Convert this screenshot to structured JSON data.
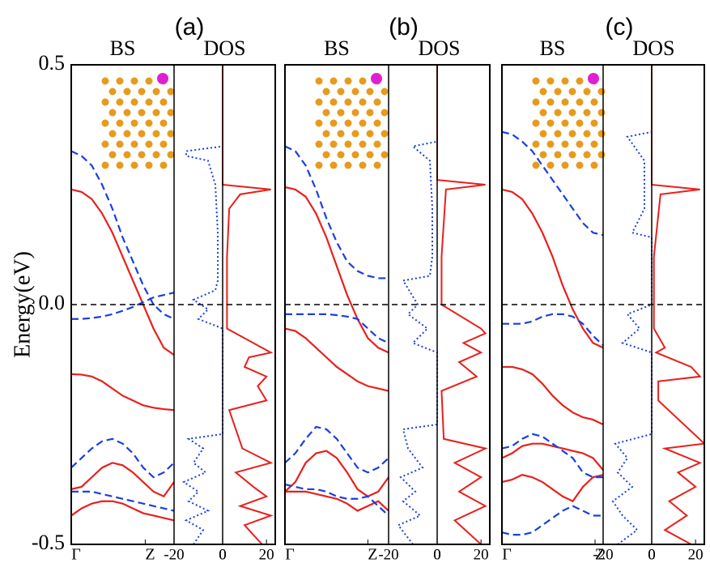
{
  "chart_data": [
    {
      "type": "band_dos",
      "title": "(a)",
      "bs_label": "BS",
      "dos_label": "DOS",
      "ylabel": "Energy(eV)",
      "ylim": [
        -0.5,
        0.5
      ],
      "yticks": [
        -0.5,
        {
          "value": 0,
          "label": "0.0"
        },
        0.5
      ],
      "fermi_line": true,
      "x": [
        0,
        0.1,
        0.2,
        0.3,
        0.4,
        0.5,
        0.6,
        0.7,
        0.8,
        0.9,
        1
      ],
      "xlim": [
        0,
        1
      ],
      "xticks": [
        {
          "value": 0,
          "label": "Γ"
        },
        {
          "value": 0.72,
          "label": "Z"
        }
      ],
      "series": [
        {
          "color": "#e8201c",
          "dash": false,
          "values": [
            0.24,
            0.235,
            0.22,
            0.19,
            0.15,
            0.1,
            0.05,
            0.0,
            -0.05,
            -0.09,
            -0.105
          ]
        },
        {
          "color": "#e8201c",
          "dash": false,
          "values": [
            -0.145,
            -0.146,
            -0.15,
            -0.16,
            -0.175,
            -0.19,
            -0.2,
            -0.21,
            -0.215,
            -0.218,
            -0.22
          ]
        },
        {
          "color": "#e8201c",
          "dash": false,
          "values": [
            -0.385,
            -0.38,
            -0.36,
            -0.34,
            -0.33,
            -0.335,
            -0.35,
            -0.37,
            -0.39,
            -0.4,
            -0.37
          ]
        },
        {
          "color": "#e8201c",
          "dash": false,
          "values": [
            -0.44,
            -0.425,
            -0.415,
            -0.41,
            -0.41,
            -0.415,
            -0.425,
            -0.435,
            -0.44,
            -0.445,
            -0.45
          ]
        },
        {
          "color": "#1a3fe0",
          "dash": true,
          "values": [
            0.32,
            0.31,
            0.29,
            0.25,
            0.2,
            0.14,
            0.09,
            0.04,
            0.0,
            -0.02,
            -0.03
          ]
        },
        {
          "color": "#1a3fe0",
          "dash": true,
          "values": [
            -0.03,
            -0.03,
            -0.028,
            -0.025,
            -0.02,
            -0.013,
            -0.005,
            0.005,
            0.015,
            0.02,
            0.025
          ]
        },
        {
          "color": "#1a3fe0",
          "dash": true,
          "values": [
            -0.34,
            -0.32,
            -0.3,
            -0.285,
            -0.28,
            -0.29,
            -0.31,
            -0.34,
            -0.36,
            -0.35,
            -0.33
          ]
        },
        {
          "color": "#1a3fe0",
          "dash": true,
          "values": [
            -0.39,
            -0.39,
            -0.39,
            -0.395,
            -0.4,
            -0.405,
            -0.41,
            -0.415,
            -0.42,
            -0.425,
            -0.43
          ]
        }
      ],
      "dos_down": {
        "color": "#1a3fe0",
        "xlim": [
          -20,
          0
        ],
        "xticks": [
          -20,
          0
        ],
        "energy": [
          -0.5,
          -0.47,
          -0.45,
          -0.43,
          -0.41,
          -0.39,
          -0.37,
          -0.35,
          -0.33,
          -0.3,
          -0.28,
          -0.27,
          -0.05,
          -0.03,
          -0.01,
          0.01,
          0.03,
          0.05,
          0.15,
          0.25,
          0.3,
          0.31,
          0.32,
          0.33,
          0.5
        ],
        "values": [
          -12,
          -8,
          -15,
          -6,
          -14,
          -10,
          -16,
          -7,
          -12,
          -8,
          -14,
          0,
          0,
          -10,
          -6,
          -12,
          -3,
          -2,
          -2,
          -3,
          -6,
          -15,
          -15,
          0,
          0
        ]
      },
      "dos_up": {
        "color": "#e8201c",
        "xlim": [
          0,
          24
        ],
        "xticks": [
          0,
          20
        ],
        "energy": [
          -0.5,
          -0.46,
          -0.44,
          -0.42,
          -0.4,
          -0.38,
          -0.35,
          -0.33,
          -0.3,
          -0.22,
          -0.2,
          -0.17,
          -0.15,
          -0.13,
          -0.11,
          -0.1,
          -0.05,
          0.1,
          0.2,
          0.23,
          0.24,
          0.25,
          0.5
        ],
        "values": [
          18,
          10,
          22,
          8,
          20,
          14,
          6,
          22,
          9,
          3,
          20,
          16,
          20,
          10,
          12,
          22,
          2,
          2,
          3,
          8,
          22,
          0,
          0
        ]
      }
    },
    {
      "type": "band_dos",
      "title": "(b)",
      "bs_label": "BS",
      "dos_label": "DOS",
      "ylim": [
        -0.5,
        0.5
      ],
      "fermi_line": true,
      "x": [
        0,
        0.1,
        0.2,
        0.3,
        0.4,
        0.5,
        0.6,
        0.7,
        0.8,
        0.9,
        1
      ],
      "xlim": [
        0,
        1
      ],
      "xticks": [
        {
          "value": 0,
          "label": "Γ"
        },
        {
          "value": 0.8,
          "label": "Z"
        }
      ],
      "series": [
        {
          "color": "#e8201c",
          "dash": false,
          "values": [
            0.245,
            0.24,
            0.225,
            0.19,
            0.14,
            0.08,
            0.02,
            -0.03,
            -0.07,
            -0.09,
            -0.1
          ]
        },
        {
          "color": "#e8201c",
          "dash": false,
          "values": [
            -0.05,
            -0.055,
            -0.07,
            -0.09,
            -0.11,
            -0.13,
            -0.145,
            -0.16,
            -0.17,
            -0.175,
            -0.18
          ]
        },
        {
          "color": "#e8201c",
          "dash": false,
          "values": [
            -0.39,
            -0.37,
            -0.33,
            -0.31,
            -0.305,
            -0.32,
            -0.35,
            -0.385,
            -0.4,
            -0.39,
            -0.36
          ]
        },
        {
          "color": "#e8201c",
          "dash": false,
          "values": [
            -0.39,
            -0.39,
            -0.39,
            -0.395,
            -0.4,
            -0.405,
            -0.415,
            -0.43,
            -0.42,
            -0.41,
            -0.43
          ]
        },
        {
          "color": "#1a3fe0",
          "dash": true,
          "values": [
            0.33,
            0.32,
            0.29,
            0.24,
            0.18,
            0.13,
            0.09,
            0.07,
            0.06,
            0.055,
            0.055
          ]
        },
        {
          "color": "#1a3fe0",
          "dash": true,
          "values": [
            -0.02,
            -0.02,
            -0.02,
            -0.02,
            -0.02,
            -0.022,
            -0.025,
            -0.03,
            -0.05,
            -0.07,
            -0.08
          ]
        },
        {
          "color": "#1a3fe0",
          "dash": true,
          "values": [
            -0.33,
            -0.31,
            -0.28,
            -0.255,
            -0.26,
            -0.28,
            -0.31,
            -0.34,
            -0.35,
            -0.34,
            -0.32
          ]
        },
        {
          "color": "#1a3fe0",
          "dash": true,
          "values": [
            -0.375,
            -0.38,
            -0.385,
            -0.385,
            -0.39,
            -0.4,
            -0.405,
            -0.405,
            -0.4,
            -0.42,
            -0.44
          ]
        }
      ],
      "dos_down": {
        "color": "#1a3fe0",
        "xlim": [
          -20,
          0
        ],
        "xticks": [
          -20,
          0
        ],
        "energy": [
          -0.5,
          -0.46,
          -0.44,
          -0.41,
          -0.39,
          -0.36,
          -0.34,
          -0.3,
          -0.26,
          -0.25,
          -0.1,
          -0.08,
          -0.05,
          -0.02,
          0.0,
          0.05,
          0.06,
          0.1,
          0.2,
          0.3,
          0.33,
          0.34,
          0.5
        ],
        "values": [
          -10,
          -16,
          -7,
          -14,
          -9,
          -15,
          -6,
          -12,
          -14,
          0,
          0,
          -10,
          -4,
          -12,
          -8,
          -14,
          -3,
          -2,
          -2,
          -3,
          -10,
          0,
          0
        ]
      },
      "dos_up": {
        "color": "#e8201c",
        "xlim": [
          0,
          24
        ],
        "xticks": [
          0,
          20
        ],
        "energy": [
          -0.5,
          -0.45,
          -0.42,
          -0.39,
          -0.36,
          -0.33,
          -0.3,
          -0.28,
          -0.18,
          -0.15,
          -0.12,
          -0.1,
          -0.08,
          -0.06,
          -0.05,
          0.0,
          0.1,
          0.24,
          0.25,
          0.26,
          0.5
        ],
        "values": [
          20,
          8,
          22,
          10,
          20,
          8,
          22,
          3,
          2,
          18,
          10,
          20,
          12,
          22,
          20,
          2,
          2,
          4,
          22,
          0,
          0
        ]
      }
    },
    {
      "type": "band_dos",
      "title": "(c)",
      "bs_label": "BS",
      "dos_label": "DOS",
      "ylim": [
        -0.5,
        0.5
      ],
      "fermi_line": true,
      "x": [
        0,
        0.1,
        0.2,
        0.3,
        0.4,
        0.5,
        0.6,
        0.7,
        0.8,
        0.9,
        1
      ],
      "xlim": [
        0,
        1
      ],
      "xticks": [
        {
          "value": 0,
          "label": "Γ"
        },
        {
          "value": 0.92,
          "label": "Z"
        }
      ],
      "series": [
        {
          "color": "#e8201c",
          "dash": false,
          "values": [
            0.24,
            0.235,
            0.22,
            0.19,
            0.15,
            0.1,
            0.04,
            -0.01,
            -0.05,
            -0.08,
            -0.09
          ]
        },
        {
          "color": "#e8201c",
          "dash": false,
          "values": [
            -0.13,
            -0.13,
            -0.135,
            -0.145,
            -0.165,
            -0.19,
            -0.21,
            -0.225,
            -0.235,
            -0.24,
            -0.25
          ]
        },
        {
          "color": "#e8201c",
          "dash": false,
          "values": [
            -0.32,
            -0.31,
            -0.295,
            -0.29,
            -0.29,
            -0.295,
            -0.3,
            -0.305,
            -0.31,
            -0.32,
            -0.345
          ]
        },
        {
          "color": "#e8201c",
          "dash": false,
          "values": [
            -0.37,
            -0.365,
            -0.355,
            -0.36,
            -0.37,
            -0.385,
            -0.4,
            -0.41,
            -0.38,
            -0.36,
            -0.355
          ]
        },
        {
          "color": "#1a3fe0",
          "dash": true,
          "values": [
            0.36,
            0.355,
            0.34,
            0.32,
            0.29,
            0.26,
            0.23,
            0.2,
            0.17,
            0.15,
            0.145
          ]
        },
        {
          "color": "#1a3fe0",
          "dash": true,
          "values": [
            -0.04,
            -0.04,
            -0.04,
            -0.035,
            -0.025,
            -0.02,
            -0.02,
            -0.025,
            -0.04,
            -0.065,
            -0.085
          ]
        },
        {
          "color": "#1a3fe0",
          "dash": true,
          "values": [
            -0.3,
            -0.295,
            -0.28,
            -0.27,
            -0.275,
            -0.29,
            -0.305,
            -0.32,
            -0.35,
            -0.36,
            -0.36
          ]
        },
        {
          "color": "#1a3fe0",
          "dash": true,
          "values": [
            -0.475,
            -0.48,
            -0.48,
            -0.475,
            -0.46,
            -0.445,
            -0.43,
            -0.42,
            -0.43,
            -0.44,
            -0.44
          ]
        }
      ],
      "dos_down": {
        "color": "#1a3fe0",
        "xlim": [
          -20,
          0
        ],
        "xticks": [
          -20,
          0
        ],
        "energy": [
          -0.5,
          -0.47,
          -0.44,
          -0.41,
          -0.38,
          -0.35,
          -0.32,
          -0.29,
          -0.27,
          -0.1,
          -0.08,
          -0.05,
          -0.02,
          0.0,
          0.14,
          0.15,
          0.2,
          0.3,
          0.35,
          0.36,
          0.5
        ],
        "values": [
          -14,
          -6,
          -12,
          -16,
          -8,
          -14,
          -10,
          -15,
          0,
          0,
          -12,
          -5,
          -10,
          0,
          0,
          -8,
          -3,
          -3,
          -10,
          0,
          0
        ]
      },
      "dos_up": {
        "color": "#e8201c",
        "xlim": [
          0,
          24
        ],
        "xticks": [
          0,
          20
        ],
        "energy": [
          -0.5,
          -0.47,
          -0.44,
          -0.41,
          -0.38,
          -0.35,
          -0.33,
          -0.3,
          -0.29,
          -0.2,
          -0.16,
          -0.15,
          -0.13,
          -0.1,
          -0.09,
          -0.05,
          0.1,
          0.23,
          0.24,
          0.25,
          0.5
        ],
        "values": [
          18,
          6,
          16,
          8,
          20,
          12,
          22,
          6,
          24,
          3,
          3,
          22,
          18,
          2,
          6,
          1,
          1,
          4,
          22,
          0,
          0
        ]
      }
    }
  ]
}
